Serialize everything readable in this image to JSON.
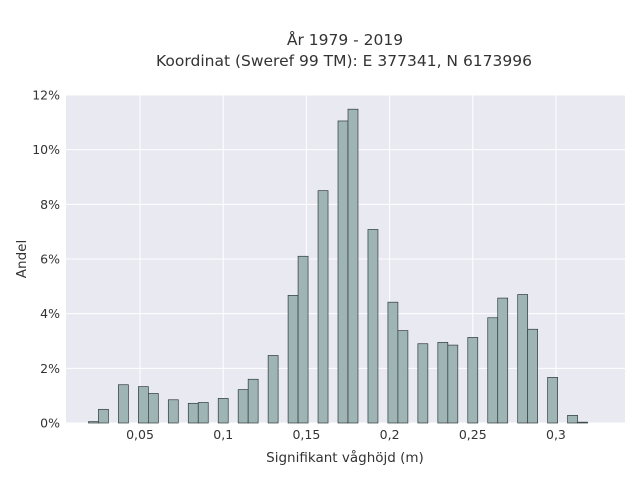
{
  "chart_data": {
    "type": "bar",
    "title_lines": [
      "År 1979 - 2019",
      "Koordinat (Sweref 99 TM): E 377341, N 6173996"
    ],
    "xlabel": "Signifikant våghöjd (m)",
    "ylabel": "Andel",
    "xlim": [
      0.0055,
      0.3415
    ],
    "ylim": [
      0,
      12
    ],
    "x_ticks": [
      0.05,
      0.1,
      0.15,
      0.2,
      0.25,
      0.3
    ],
    "x_tick_labels": [
      "0,05",
      "0,1",
      "0,15",
      "0,2",
      "0,25",
      "0,3"
    ],
    "y_ticks": [
      0,
      2,
      4,
      6,
      8,
      10,
      12
    ],
    "y_tick_labels": [
      "0%",
      "2%",
      "4%",
      "6%",
      "8%",
      "10%",
      "12%"
    ],
    "grid": true,
    "legend": false,
    "bar_width": 0.006,
    "series": [
      {
        "x": [
          0.022,
          0.028,
          0.04,
          0.052,
          0.058,
          0.07,
          0.082,
          0.088,
          0.1,
          0.112,
          0.118,
          0.13,
          0.142,
          0.148,
          0.16,
          0.172,
          0.178,
          0.19,
          0.202,
          0.208,
          0.22,
          0.232,
          0.238,
          0.25,
          0.262,
          0.268,
          0.28,
          0.286,
          0.298,
          0.31,
          0.316
        ],
        "values": [
          0.05,
          0.5,
          1.4,
          1.33,
          1.08,
          0.85,
          0.72,
          0.75,
          0.9,
          1.22,
          1.6,
          2.47,
          4.67,
          6.1,
          8.5,
          11.05,
          11.48,
          7.08,
          4.42,
          3.38,
          2.9,
          2.95,
          2.85,
          3.13,
          3.85,
          4.57,
          4.7,
          3.43,
          1.67,
          0.28,
          0.03
        ]
      }
    ],
    "colors": {
      "bar_fill": "#9fb5b5",
      "bar_stroke": "#2f3b3b",
      "plot_bg": "#e9e9f2",
      "grid": "#ffffff"
    }
  }
}
